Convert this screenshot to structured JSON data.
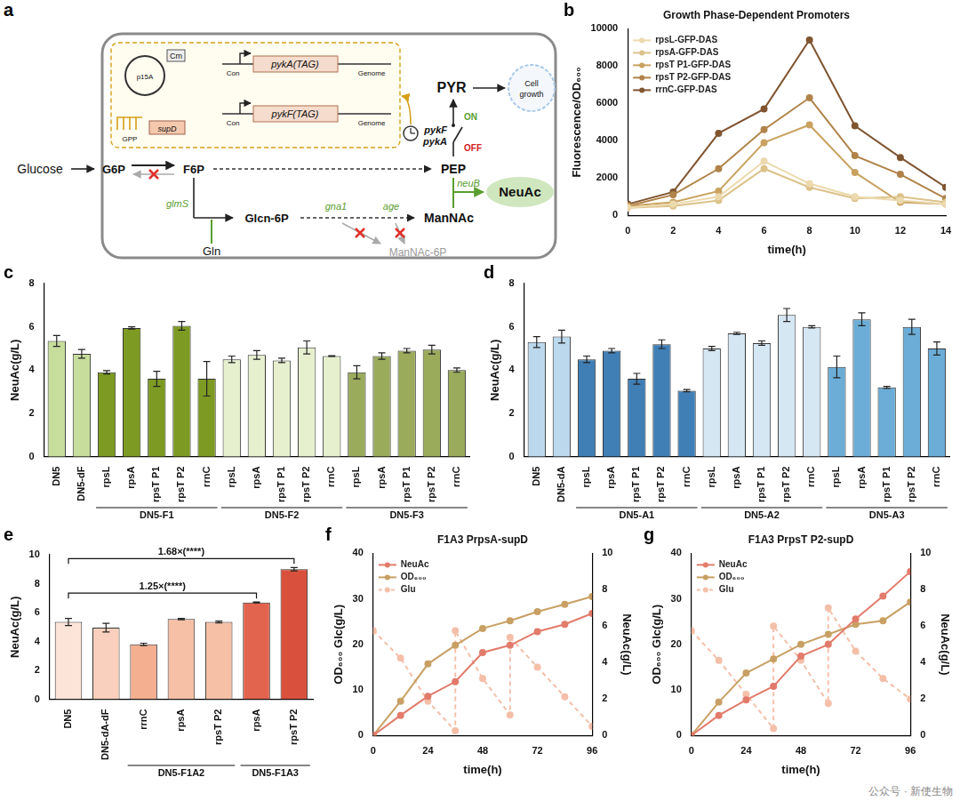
{
  "diagram": {
    "panel": "a",
    "glucose": "Glucose",
    "g6p": "G6P",
    "f6p": "F6P",
    "pep": "PEP",
    "pyr": "PYR",
    "cell_growth": "Cell growth",
    "neuac": "NeuAc",
    "glcn6p": "Glcn-6P",
    "mannac": "ManNAc",
    "mannac6p": "ManNAc-6P",
    "gln": "Gln",
    "glms": "glmS",
    "gna1": "gna1",
    "age": "age",
    "neub": "neuB",
    "pykf": "pykF",
    "pyka": "pykA",
    "on": "ON",
    "off": "OFF",
    "p15a": "p15A",
    "cm": "Cm",
    "gpp": "GPP",
    "supd": "supD",
    "con": "Con",
    "pyka_tag": "pykA(TAG)",
    "pykf_tag": "pykF(TAG)",
    "genome": "Genome"
  },
  "chart_data": [
    {
      "panel": "b",
      "type": "line",
      "title": "Growth Phase-Dependent Promoters",
      "x_label": "time(h)",
      "y_label": "Fluorescence/OD₆₀₀",
      "x": [
        0,
        2,
        4,
        6,
        8,
        10,
        12,
        14
      ],
      "xlim": [
        0,
        14
      ],
      "xticks": [
        0,
        2,
        4,
        6,
        8,
        10,
        12,
        14
      ],
      "ylim": [
        0,
        10000
      ],
      "yticks": [
        0,
        2000,
        4000,
        6000,
        8000,
        10000
      ],
      "grid": false,
      "legend": "upper left",
      "marker": "circle",
      "series": [
        {
          "name": "rpsL-GFP-DAS",
          "color": "#ecd9ad",
          "values": [
            400,
            600,
            1000,
            2900,
            1700,
            1000,
            800,
            600
          ]
        },
        {
          "name": "rpsA-GFP-DAS",
          "color": "#dcc28a",
          "values": [
            400,
            500,
            800,
            2500,
            1500,
            900,
            1000,
            700
          ]
        },
        {
          "name": "rpsT P1-GFP-DAS",
          "color": "#c9a260",
          "values": [
            500,
            700,
            1300,
            3900,
            4850,
            2300,
            700,
            600
          ]
        },
        {
          "name": "rpsT P2-GFP-DAS",
          "color": "#b0834a",
          "values": [
            500,
            1100,
            2500,
            4600,
            6300,
            3200,
            2200,
            900
          ]
        },
        {
          "name": "rrnC-GFP-DAS",
          "color": "#7f5530",
          "values": [
            600,
            1250,
            4400,
            5700,
            9400,
            4800,
            3100,
            1500
          ]
        }
      ]
    },
    {
      "panel": "c",
      "type": "bar",
      "y_label": "NeuAc(g/L)",
      "categories": [
        "DN5",
        "DN5-dF",
        "rpsL",
        "rpsA",
        "rpsT P1",
        "rpsT P2",
        "rrnC",
        "rpsL",
        "rpsA",
        "rpsT P1",
        "rpsT P2",
        "rrnC",
        "rpsL",
        "rpsA",
        "rpsT P1",
        "rpsT P2",
        "rrnC"
      ],
      "category_groups": [
        null,
        null,
        "DN5-F1",
        "DN5-F1",
        "DN5-F1",
        "DN5-F1",
        "DN5-F1",
        "DN5-F2",
        "DN5-F2",
        "DN5-F2",
        "DN5-F2",
        "DN5-F2",
        "DN5-F3",
        "DN5-F3",
        "DN5-F3",
        "DN5-F3",
        "DN5-F3"
      ],
      "values": [
        5.35,
        4.75,
        3.9,
        5.95,
        3.6,
        6.05,
        3.6,
        4.5,
        4.7,
        4.45,
        5.05,
        4.65,
        3.9,
        4.65,
        4.9,
        4.95,
        4.0
      ],
      "errors": [
        0.25,
        0.2,
        0.08,
        0.05,
        0.35,
        0.2,
        0.8,
        0.15,
        0.2,
        0.1,
        0.3,
        0.02,
        0.3,
        0.15,
        0.1,
        0.2,
        0.1
      ],
      "colors": [
        "#c6dd9c",
        "#c6dd9c",
        "#7d9a22",
        "#7d9a22",
        "#7d9a22",
        "#7d9a22",
        "#7d9a22",
        "#e6f0cf",
        "#e6f0cf",
        "#e6f0cf",
        "#e6f0cf",
        "#e6f0cf",
        "#9aab5c",
        "#9aab5c",
        "#9aab5c",
        "#9aab5c",
        "#9aab5c"
      ],
      "ylim": [
        0,
        8
      ],
      "yticks": [
        0,
        2,
        4,
        6,
        8
      ],
      "grid": false
    },
    {
      "panel": "d",
      "type": "bar",
      "y_label": "NeuAc(g/L)",
      "categories": [
        "DN5",
        "DN5-dA",
        "rpsL",
        "rpsA",
        "rpsT P1",
        "rpsT P2",
        "rrnC",
        "rpsL",
        "rpsA",
        "rpsT P1",
        "rpsT P2",
        "rrnC",
        "rpsL",
        "rpsA",
        "rpsT P1",
        "rpsT P2",
        "rrnC"
      ],
      "category_groups": [
        null,
        null,
        "DN5-A1",
        "DN5-A1",
        "DN5-A1",
        "DN5-A1",
        "DN5-A1",
        "DN5-A2",
        "DN5-A2",
        "DN5-A2",
        "DN5-A2",
        "DN5-A2",
        "DN5-A3",
        "DN5-A3",
        "DN5-A3",
        "DN5-A3",
        "DN5-A3"
      ],
      "values": [
        5.3,
        5.55,
        4.5,
        4.9,
        3.6,
        5.2,
        3.05,
        5.0,
        5.7,
        5.25,
        6.55,
        6.0,
        4.15,
        6.35,
        3.2,
        6.0,
        5.0
      ],
      "errors": [
        0.25,
        0.3,
        0.15,
        0.1,
        0.25,
        0.2,
        0.05,
        0.1,
        0.05,
        0.1,
        0.3,
        0.05,
        0.5,
        0.3,
        0.05,
        0.35,
        0.3
      ],
      "colors": [
        "#bcd8ec",
        "#bcd8ec",
        "#3f7fb5",
        "#3f7fb5",
        "#3f7fb5",
        "#3f7fb5",
        "#3f7fb5",
        "#d6e7f4",
        "#d6e7f4",
        "#d6e7f4",
        "#d6e7f4",
        "#d6e7f4",
        "#6badd6",
        "#6badd6",
        "#6badd6",
        "#6badd6",
        "#6badd6"
      ],
      "ylim": [
        0,
        8
      ],
      "yticks": [
        0,
        2,
        4,
        6,
        8
      ],
      "grid": false
    },
    {
      "panel": "e",
      "type": "bar",
      "y_label": "NeuAc(g/L)",
      "categories": [
        "DN5",
        "DN5-dA-dF",
        "rrnC",
        "rpsA",
        "rpsT P2",
        "rpsA",
        "rpsT P2"
      ],
      "category_groups": [
        null,
        null,
        "DN5-F1A2",
        "DN5-F1A2",
        "DN5-F1A2",
        "DN5-F1A3",
        "DN5-F1A3"
      ],
      "values": [
        5.35,
        4.95,
        3.8,
        5.55,
        5.35,
        6.7,
        9.0
      ],
      "errors": [
        0.25,
        0.3,
        0.08,
        0.05,
        0.06,
        0.03,
        0.12
      ],
      "colors": [
        "#fde4d8",
        "#f9d0bd",
        "#f4ae90",
        "#f6c0a6",
        "#f6c0a6",
        "#e3644e",
        "#d9513c"
      ],
      "ylim": [
        0,
        10
      ],
      "yticks": [
        0,
        2,
        4,
        6,
        8,
        10
      ],
      "grid": false,
      "annotations": [
        {
          "text": "1.25×(****)",
          "from": 0,
          "to": 5
        },
        {
          "text": "1.68×(****)",
          "from": 0,
          "to": 6
        }
      ]
    },
    {
      "panel": "f",
      "type": "line",
      "title": "F1A3 PrpsA-supD",
      "x_label": "time(h)",
      "y_label": "OD₆₀₀ Glc(g/L)",
      "y2_label": "NeuAc(g/L)",
      "xlim": [
        0,
        96
      ],
      "xticks": [
        0,
        24,
        48,
        72,
        96
      ],
      "ylim": [
        0,
        40
      ],
      "yticks": [
        0,
        10,
        20,
        30,
        40
      ],
      "y2lim": [
        0,
        10
      ],
      "y2ticks": [
        0,
        2,
        4,
        6,
        8,
        10
      ],
      "grid": false,
      "legend": "upper left",
      "marker": "circle",
      "series": [
        {
          "name": "NeuAc",
          "color": "#e27b6b",
          "axis": "y2",
          "x": [
            0,
            12,
            24,
            36,
            48,
            60,
            72,
            84,
            96
          ],
          "values": [
            0,
            1.1,
            2.15,
            2.95,
            4.55,
            4.95,
            5.7,
            6.1,
            6.7
          ]
        },
        {
          "name": "OD₆₀₀",
          "color": "#c8a064",
          "x": [
            0,
            12,
            24,
            36,
            48,
            60,
            72,
            84,
            96
          ],
          "values": [
            0,
            7.5,
            15.7,
            19.8,
            23.5,
            25.2,
            27.2,
            28.8,
            30.5
          ]
        },
        {
          "name": "Glu",
          "color": "#f4bfa9",
          "line_style": "dashed",
          "x": [
            0,
            12,
            24,
            36,
            36,
            48,
            60,
            60,
            72,
            84,
            96
          ],
          "values": [
            23,
            17,
            7.5,
            1,
            23,
            12.5,
            4.5,
            21.5,
            15,
            8.5,
            2
          ]
        }
      ]
    },
    {
      "panel": "g",
      "type": "line",
      "title": "F1A3 PrpsT P2-supD",
      "x_label": "time(h)",
      "y_label": "OD₆₀₀ Glc(g/L)",
      "y2_label": "NeuAc(g/L)",
      "xlim": [
        0,
        96
      ],
      "xticks": [
        0,
        24,
        48,
        72,
        96
      ],
      "ylim": [
        0,
        40
      ],
      "yticks": [
        0,
        10,
        20,
        30,
        40
      ],
      "y2lim": [
        0,
        10
      ],
      "y2ticks": [
        0,
        2,
        4,
        6,
        8,
        10
      ],
      "grid": false,
      "legend": "upper left",
      "marker": "circle",
      "series": [
        {
          "name": "NeuAc",
          "color": "#e27b6b",
          "axis": "y2",
          "x": [
            0,
            12,
            24,
            36,
            48,
            60,
            72,
            84,
            96
          ],
          "values": [
            0,
            1.1,
            1.95,
            2.7,
            4.35,
            5.0,
            6.4,
            7.65,
            9.0
          ]
        },
        {
          "name": "OD₆₀₀",
          "color": "#c8a064",
          "x": [
            0,
            12,
            24,
            36,
            48,
            60,
            72,
            84,
            96
          ],
          "values": [
            0,
            7.3,
            13.7,
            16.8,
            20.0,
            22.2,
            24.4,
            25.2,
            29.3
          ]
        },
        {
          "name": "Glu",
          "color": "#f4bfa9",
          "line_style": "dashed",
          "x": [
            0,
            12,
            24,
            36,
            36,
            48,
            60,
            60,
            72,
            84,
            96
          ],
          "values": [
            23,
            16.5,
            9,
            1.5,
            24,
            16.5,
            7,
            28,
            18.5,
            12.5,
            8
          ]
        }
      ]
    }
  ],
  "watermark": "公众号 · 新使生物"
}
